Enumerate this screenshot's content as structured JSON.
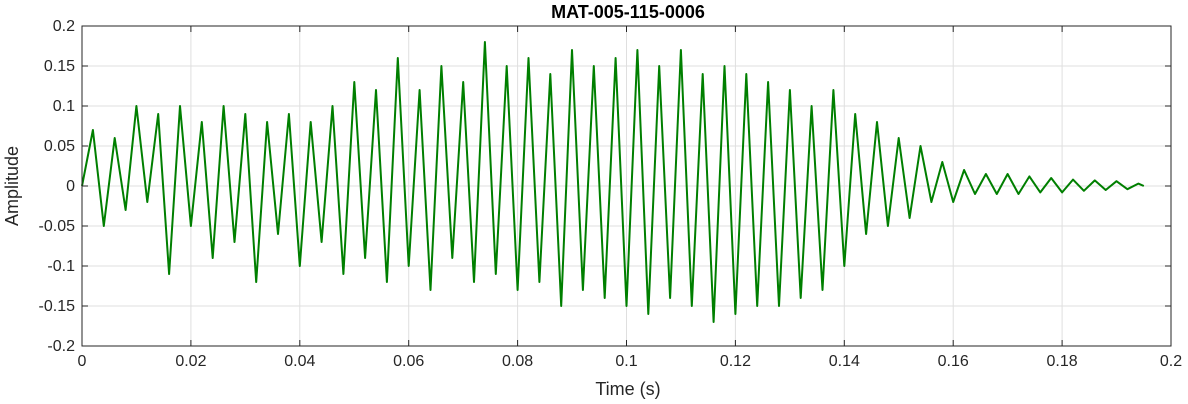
{
  "chart_data": {
    "type": "line",
    "title": "MAT-005-115-0006",
    "xlabel": "Time (s)",
    "ylabel": "Amplitude",
    "xlim": [
      0,
      0.2
    ],
    "ylim": [
      -0.2,
      0.2
    ],
    "x_ticks": [
      0,
      0.02,
      0.04,
      0.06,
      0.08,
      0.1,
      0.12,
      0.14,
      0.16,
      0.18,
      0.2
    ],
    "x_tick_labels": [
      "0",
      "0.02",
      "0.04",
      "0.06",
      "0.08",
      "0.1",
      "0.12",
      "0.14",
      "0.16",
      "0.18",
      "0.2"
    ],
    "y_ticks": [
      0.2,
      0.15,
      0.1,
      0.05,
      0,
      -0.05,
      -0.1,
      -0.15,
      -0.2
    ],
    "y_tick_labels": [
      "0.2",
      "0.15",
      "0.1",
      "0.05",
      "0",
      "-0.05",
      "-0.1",
      "-0.15",
      "-0.2"
    ],
    "grid": true,
    "line_color": "#007f00",
    "series": [
      {
        "x": [
          0,
          0.002,
          0.004,
          0.006,
          0.008,
          0.01,
          0.012,
          0.014,
          0.016,
          0.018,
          0.02,
          0.022,
          0.024,
          0.026,
          0.028,
          0.03,
          0.032,
          0.034,
          0.036,
          0.038,
          0.04,
          0.042,
          0.044,
          0.046,
          0.048,
          0.05,
          0.052,
          0.054,
          0.056,
          0.058,
          0.06,
          0.062,
          0.064,
          0.066,
          0.068,
          0.07,
          0.072,
          0.074,
          0.076,
          0.078,
          0.08,
          0.082,
          0.084,
          0.086,
          0.088,
          0.09,
          0.092,
          0.094,
          0.096,
          0.098,
          0.1,
          0.102,
          0.104,
          0.106,
          0.108,
          0.11,
          0.112,
          0.114,
          0.116,
          0.118,
          0.12,
          0.122,
          0.124,
          0.126,
          0.128,
          0.13,
          0.132,
          0.134,
          0.136,
          0.138,
          0.14,
          0.142,
          0.144,
          0.146,
          0.148,
          0.15,
          0.152,
          0.154,
          0.156,
          0.158,
          0.16,
          0.162,
          0.164,
          0.166,
          0.168,
          0.17,
          0.172,
          0.174,
          0.176,
          0.178,
          0.18,
          0.182,
          0.184,
          0.186,
          0.188,
          0.19,
          0.192,
          0.194,
          0.195
        ],
        "y": [
          0.0,
          0.07,
          -0.05,
          0.06,
          -0.03,
          0.1,
          -0.02,
          0.09,
          -0.11,
          0.1,
          -0.05,
          0.08,
          -0.09,
          0.1,
          -0.07,
          0.09,
          -0.12,
          0.08,
          -0.06,
          0.09,
          -0.1,
          0.08,
          -0.07,
          0.1,
          -0.11,
          0.13,
          -0.09,
          0.12,
          -0.12,
          0.16,
          -0.1,
          0.12,
          -0.13,
          0.15,
          -0.09,
          0.13,
          -0.12,
          0.18,
          -0.11,
          0.15,
          -0.13,
          0.16,
          -0.12,
          0.14,
          -0.15,
          0.17,
          -0.13,
          0.15,
          -0.14,
          0.16,
          -0.15,
          0.17,
          -0.16,
          0.15,
          -0.14,
          0.17,
          -0.15,
          0.14,
          -0.17,
          0.15,
          -0.16,
          0.14,
          -0.15,
          0.13,
          -0.15,
          0.12,
          -0.14,
          0.1,
          -0.13,
          0.12,
          -0.1,
          0.09,
          -0.06,
          0.08,
          -0.05,
          0.06,
          -0.04,
          0.05,
          -0.02,
          0.03,
          -0.02,
          0.02,
          -0.01,
          0.015,
          -0.01,
          0.015,
          -0.01,
          0.012,
          -0.008,
          0.01,
          -0.008,
          0.008,
          -0.006,
          0.007,
          -0.005,
          0.006,
          -0.004,
          0.003,
          0.0
        ]
      }
    ]
  }
}
